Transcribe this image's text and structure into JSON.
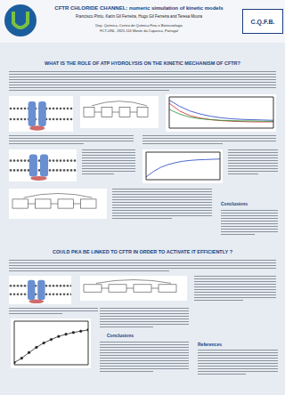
{
  "header": {
    "title": "CFTR CHLORIDE CHANNEL: numeric simulation of kinetic models",
    "authors": "Francisco Pinto, Karin Gil Ferreira, Hugo Gil Ferreira and Teresa Moura",
    "affiliation": [
      "Dep. Química, Centro de Química Fina e Biotecnologia",
      "FCT-UNL, 2825-114 Monte da Caparica, Portugal"
    ],
    "logo_right": "C.Q.F.B."
  },
  "sections": [
    {
      "title": "WHAT IS THE ROLE OF ATP HYDROLYSIS ON THE KINETIC MECHANISM OF CFTR?",
      "subheading": "Conclusions"
    },
    {
      "title": "COULD PKA BE LINKED TO CFTR IN ORDER TO ACTIVATE IT EFFICIENTLY ?",
      "subheading": "Conclusions"
    }
  ],
  "references_title": "References",
  "chart_data": [
    {
      "type": "line",
      "x": [
        0,
        1,
        2,
        3,
        4,
        5,
        6,
        7,
        8,
        9,
        10
      ],
      "xlim": [
        0,
        10
      ],
      "ylim": [
        0,
        1
      ],
      "tick_labels": false,
      "grid": false,
      "series": [
        {
          "color": "#1f3fbf",
          "values": [
            0.9,
            0.7,
            0.55,
            0.45,
            0.38,
            0.33,
            0.3,
            0.28,
            0.27,
            0.26,
            0.25
          ]
        },
        {
          "color": "#d02020",
          "values": [
            0.8,
            0.55,
            0.4,
            0.32,
            0.27,
            0.24,
            0.22,
            0.21,
            0.2,
            0.2,
            0.2
          ]
        },
        {
          "color": "#209030",
          "values": [
            0.6,
            0.45,
            0.35,
            0.3,
            0.27,
            0.25,
            0.24,
            0.23,
            0.23,
            0.22,
            0.22
          ]
        }
      ]
    },
    {
      "type": "line",
      "x": [
        0,
        1,
        2,
        3,
        4,
        5,
        6,
        7,
        8,
        9,
        10
      ],
      "xlim": [
        0,
        10
      ],
      "ylim": [
        0,
        1
      ],
      "tick_labels": false,
      "grid": false,
      "series": [
        {
          "color": "#1f3fbf",
          "values": [
            0.1,
            0.3,
            0.45,
            0.55,
            0.62,
            0.67,
            0.7,
            0.72,
            0.73,
            0.74,
            0.75
          ]
        }
      ]
    },
    {
      "type": "line",
      "x": [
        0,
        1,
        2,
        3,
        4,
        5,
        6,
        7,
        8,
        9,
        10
      ],
      "xlim": [
        0,
        10
      ],
      "ylim": [
        0,
        1
      ],
      "tick_labels": false,
      "grid": false,
      "series": [
        {
          "color": "#222222",
          "marker": "circle",
          "values": [
            0.05,
            0.15,
            0.28,
            0.4,
            0.5,
            0.58,
            0.65,
            0.7,
            0.74,
            0.77,
            0.8
          ]
        }
      ]
    }
  ]
}
